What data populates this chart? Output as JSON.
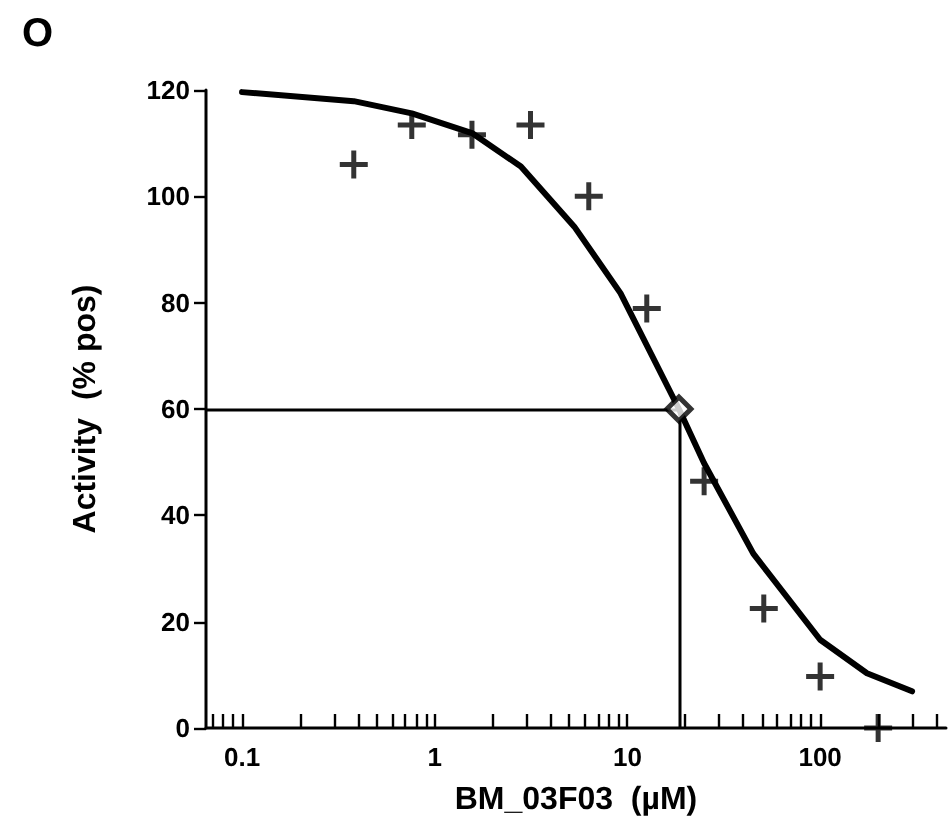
{
  "chart_data": {
    "type": "scatter",
    "title": "O",
    "xlabel": "BM_03F03  (µM)",
    "ylabel": "Activity  (% pos)",
    "log": "x",
    "xlim": [
      0.065,
      450
    ],
    "xticks": [
      {
        "value": 0.07,
        "label": null
      },
      {
        "value": 0.08,
        "label": null
      },
      {
        "value": 0.09,
        "label": null
      },
      0.1,
      {
        "value": 0.2,
        "label": null
      },
      {
        "value": 0.3,
        "label": null
      },
      {
        "value": 0.4,
        "label": null
      },
      {
        "value": 0.5,
        "label": null
      },
      {
        "value": 0.6,
        "label": null
      },
      {
        "value": 0.7,
        "label": null
      },
      {
        "value": 0.8,
        "label": null
      },
      {
        "value": 0.9,
        "label": null
      },
      1,
      {
        "value": 2,
        "label": null
      },
      {
        "value": 3,
        "label": null
      },
      {
        "value": 4,
        "label": null
      },
      {
        "value": 5,
        "label": null
      },
      {
        "value": 6,
        "label": null
      },
      {
        "value": 7,
        "label": null
      },
      {
        "value": 8,
        "label": null
      },
      {
        "value": 9,
        "label": null
      },
      10,
      {
        "value": 20,
        "label": null
      },
      {
        "value": 30,
        "label": null
      },
      {
        "value": 40,
        "label": null
      },
      {
        "value": 50,
        "label": null
      },
      {
        "value": 60,
        "label": null
      },
      {
        "value": 70,
        "label": null
      },
      {
        "value": 80,
        "label": null
      },
      {
        "value": 90,
        "label": null
      },
      100,
      {
        "value": 200,
        "label": null
      },
      {
        "value": 300,
        "label": null
      },
      {
        "value": 400,
        "label": null
      }
    ],
    "ylim": [
      0,
      120
    ],
    "yticks": [
      0,
      20,
      40,
      60,
      80,
      100,
      120
    ],
    "grid": false,
    "series": [
      {
        "type": "line",
        "color": "#000000",
        "marker": "none",
        "x": [
          0.1,
          0.38,
          0.76,
          1.56,
          2.8,
          5.3,
          9.2,
          18.5,
          25,
          45,
          100,
          175,
          300
        ],
        "values": [
          119.6,
          117.9,
          115.6,
          111.9,
          105.6,
          94.3,
          81.8,
          60,
          49.8,
          32.8,
          16.6,
          10.3,
          6.9
        ]
      },
      {
        "color": "#000000",
        "marker": "cross",
        "x": [
          0.38,
          0.76,
          1.56,
          3.14,
          6.3,
          12.6,
          25,
          51,
          100,
          200
        ],
        "values": [
          106,
          113.4,
          111.6,
          113.4,
          100,
          78.9,
          46.4,
          22.5,
          9.7,
          0
        ]
      },
      {
        "color": "#000000",
        "marker": "diamond",
        "x": [
          18.5
        ],
        "values": [
          60
        ]
      }
    ],
    "ref_lines": [
      {
        "axis": "x",
        "value": 18.5,
        "color": "#000000"
      },
      {
        "axis": "y",
        "value": 60,
        "color": "#000000"
      }
    ]
  }
}
